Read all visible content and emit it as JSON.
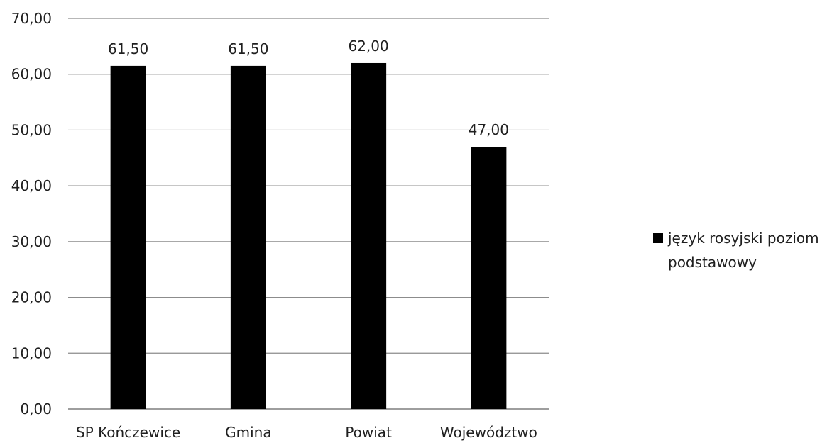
{
  "chart_data": {
    "type": "bar",
    "categories": [
      "SP Kończewice",
      "Gmina",
      "Powiat",
      "Województwo"
    ],
    "series": [
      {
        "name": "język rosyjski poziom podstawowy",
        "values": [
          61.5,
          61.5,
          62.0,
          47.0
        ],
        "color": "#000000",
        "data_labels": [
          "61,50",
          "61,50",
          "62,00",
          "47,00"
        ]
      }
    ],
    "ylim": [
      0,
      70
    ],
    "yticks": [
      0,
      10,
      20,
      30,
      40,
      50,
      60,
      70
    ],
    "ytick_labels": [
      "0,00",
      "10,00",
      "20,00",
      "30,00",
      "40,00",
      "50,00",
      "60,00",
      "70,00"
    ],
    "grid": true,
    "legend": {
      "position": "right",
      "lines": [
        "język rosyjski poziom",
        "podstawowy"
      ]
    },
    "title": "",
    "xlabel": "",
    "ylabel": ""
  }
}
